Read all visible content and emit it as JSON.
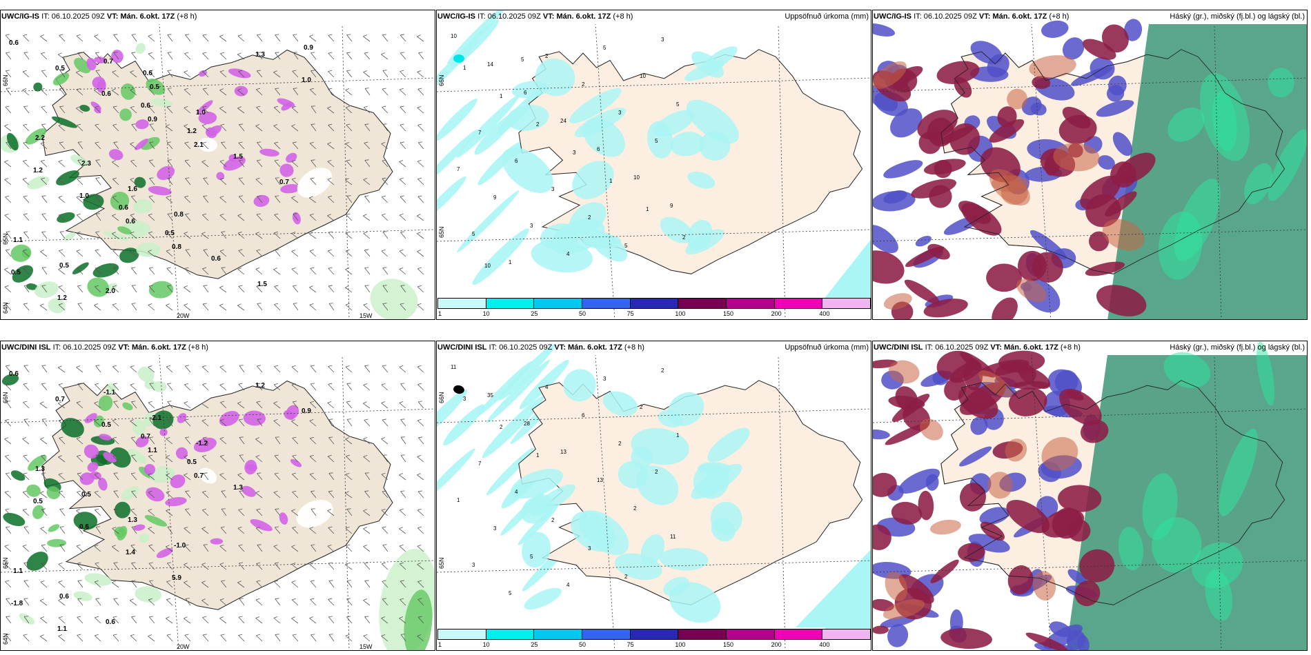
{
  "rows": [
    {
      "id": "top",
      "model": "UWC/IG-IS",
      "init_label": "IT:",
      "init_time": "06.10.2025 09Z",
      "valid_label": "VT:",
      "valid_time": "Mán. 6.okt. 17Z",
      "lead": "(+8 h)"
    },
    {
      "id": "bottom",
      "model": "UWC/DINI ISL",
      "init_label": "IT:",
      "init_time": "06.10.2025 09Z",
      "valid_label": "VT:",
      "valid_time": "Mán. 6.okt. 17Z",
      "lead": "(+8 h)"
    }
  ],
  "panels": {
    "precip_title": "Uppsöfnuð úrkoma (mm)",
    "cloud_title": "Háský (gr.), miðský (fj.bl.) og lágský (bl.)"
  },
  "grid_labels": {
    "lat66": "66N",
    "lat65": "65N",
    "lat64": "64N",
    "lon20": "20W",
    "lon15": "15W"
  },
  "legend": {
    "ticks": [
      "1",
      "10",
      "25",
      "50",
      "75",
      "100",
      "150",
      "200",
      "400"
    ],
    "colors": [
      "#c8fafa",
      "#00f0f0",
      "#00c8f0",
      "#3264f0",
      "#2828b4",
      "#780050",
      "#b4008c",
      "#f000b4",
      "#f0b4f0"
    ]
  },
  "colors": {
    "land": "#efe6d8",
    "land_precip": "#fcefe2",
    "precip_light": "#aaf5f5",
    "green_light": "#c8f0c8",
    "green_mid": "#64c864",
    "green_dark": "#0a6e28",
    "magenta": "#d264e6",
    "cloud_high": "#8c1e46",
    "cloud_mid": "#5050c8",
    "cloud_low": "#3c9678"
  },
  "top_left_values": [
    "0.6",
    "0.5",
    "0.6",
    "0.9",
    "2.1",
    "1.2",
    "1.0",
    "0.6",
    "0.8",
    "0.5",
    "1.2",
    "0.7",
    "0.5",
    "1.0",
    "2.2",
    "2.3",
    "1.6",
    "0.8",
    "1.1",
    "0.5",
    "2.0",
    "1.3",
    "1.0",
    "0.6",
    "1.2",
    "1.5",
    "0.7",
    "0.6",
    "0.5",
    "0.6",
    "1.5",
    "0.9",
    "0.6"
  ],
  "bottom_left_values": [
    "0.6",
    "0.7",
    "0.5",
    "1.1",
    "0.7",
    "0.5",
    "0.6",
    "1.4",
    "5.9",
    "-1.8",
    "1.1",
    "-1.1",
    "-2.1",
    "-1.2",
    "1.3",
    "0.5",
    "1.3",
    "-1.0",
    "1.1",
    "0.6",
    "0.6",
    "1.2",
    "0.9",
    "0.7",
    "0.5",
    "1.3"
  ],
  "top_precip_values": [
    "10",
    "14",
    "6",
    "24",
    "6",
    "10",
    "9",
    "5",
    "1",
    "2",
    "2",
    "3",
    "5",
    "7",
    "9",
    "3",
    "4",
    "5",
    "10",
    "5",
    "7",
    "6",
    "3",
    "2",
    "5",
    "3",
    "1",
    "1",
    "2",
    "3",
    "1",
    "1",
    "2",
    "10",
    "5"
  ],
  "bottom_precip_values": [
    "11",
    "35",
    "28",
    "13",
    "13",
    "2",
    "11",
    "3",
    "5",
    "4",
    "6",
    "2",
    "2",
    "1",
    "3",
    "5",
    "4",
    "3",
    "2",
    "1",
    "7",
    "4",
    "2",
    "3",
    "2",
    "2",
    "3",
    "2",
    "1"
  ]
}
